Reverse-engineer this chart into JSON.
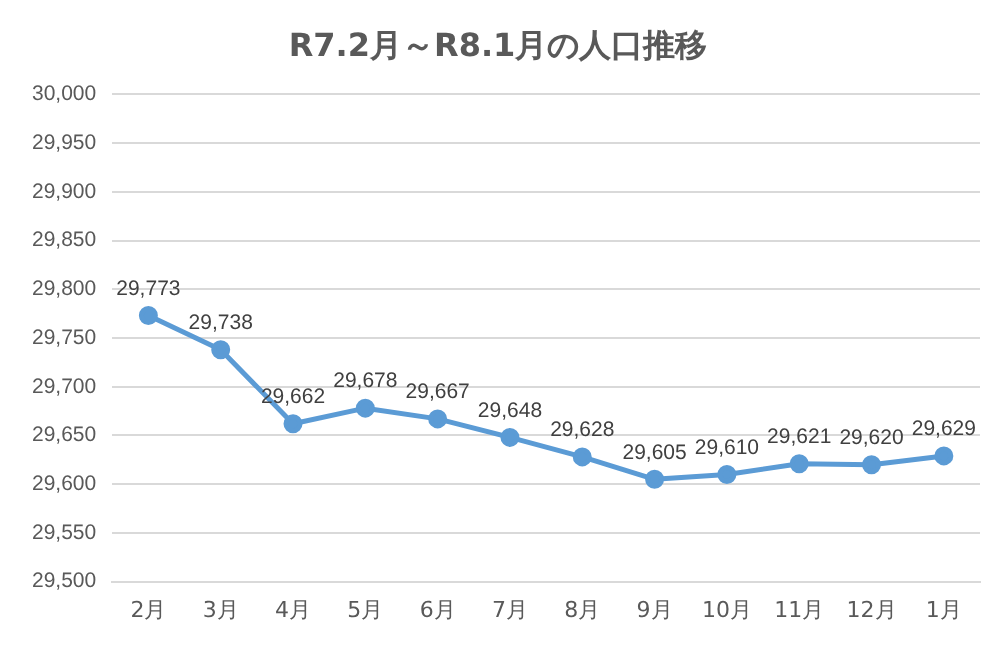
{
  "chart_data": {
    "type": "line",
    "title": "R7.2月～R8.1月の人口推移",
    "categories": [
      "2月",
      "3月",
      "4月",
      "5月",
      "6月",
      "7月",
      "8月",
      "9月",
      "10月",
      "11月",
      "12月",
      "1月"
    ],
    "series": [
      {
        "color": "#5b9bd5",
        "values": [
          29773,
          29738,
          29662,
          29678,
          29667,
          29648,
          29628,
          29605,
          29610,
          29621,
          29620,
          29629
        ],
        "value_labels": [
          "29,773",
          "29,738",
          "29,662",
          "29,678",
          "29,667",
          "29,648",
          "29,628",
          "29,605",
          "29,610",
          "29,621",
          "29,620",
          "29,629"
        ]
      }
    ],
    "ylim": [
      29500,
      30000
    ],
    "yticks": [
      {
        "value": 29500,
        "label": "29,500"
      },
      {
        "value": 29550,
        "label": "29,550"
      },
      {
        "value": 29600,
        "label": "29,600"
      },
      {
        "value": 29650,
        "label": "29,650"
      },
      {
        "value": 29700,
        "label": "29,700"
      },
      {
        "value": 29750,
        "label": "29,750"
      },
      {
        "value": 29800,
        "label": "29,800"
      },
      {
        "value": 29850,
        "label": "29,850"
      },
      {
        "value": 29900,
        "label": "29,900"
      },
      {
        "value": 29950,
        "label": "29,950"
      },
      {
        "value": 30000,
        "label": "30,000"
      }
    ],
    "grid": "y",
    "legend": false,
    "marker": "circle",
    "line_style": "solid"
  }
}
